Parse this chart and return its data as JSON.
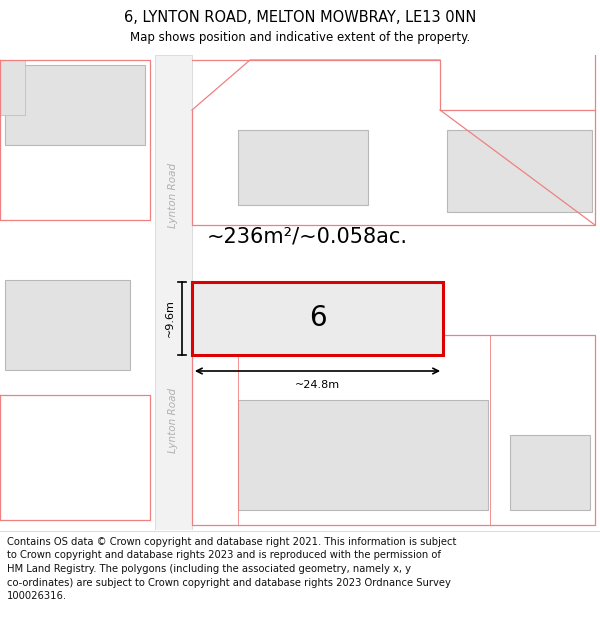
{
  "title": "6, LYNTON ROAD, MELTON MOWBRAY, LE13 0NN",
  "subtitle": "Map shows position and indicative extent of the property.",
  "footer_lines": [
    "Contains OS data © Crown copyright and database right 2021. This information is subject",
    "to Crown copyright and database rights 2023 and is reproduced with the permission of",
    "HM Land Registry. The polygons (including the associated geometry, namely x, y",
    "co-ordinates) are subject to Crown copyright and database rights 2023 Ordnance Survey",
    "100026316."
  ],
  "area_text": "~236m²/~0.058ac.",
  "dim_width": "~24.8m",
  "dim_height": "~9.6m",
  "property_number": "6",
  "road_label": "Lynton Road",
  "map_bg": "#f7f7f7",
  "building_fill": "#e2e2e2",
  "building_edge": "#b8b8b8",
  "road_fill": "#f0f0f0",
  "road_border": "#cccccc",
  "property_line_color": "#f08080",
  "highlight_color": "#dd0000",
  "title_fontsize": 10.5,
  "subtitle_fontsize": 8.5,
  "footer_fontsize": 7.2,
  "road_label_fontsize": 7.5,
  "area_fontsize": 15,
  "number_fontsize": 20,
  "dim_fontsize": 8
}
